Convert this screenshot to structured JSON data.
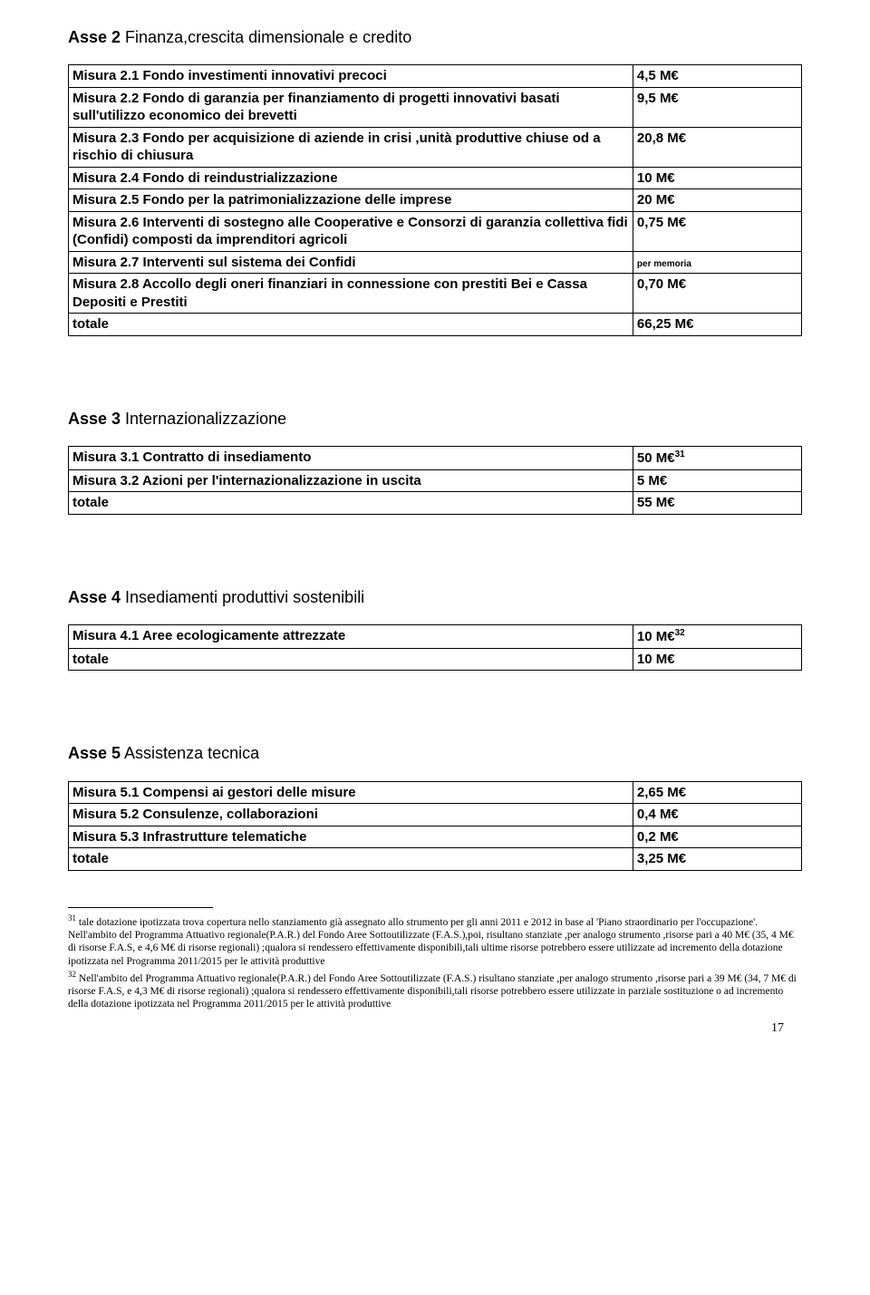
{
  "asse2": {
    "title_bold": "Asse 2",
    "title_rest": " Finanza,crescita dimensionale e credito",
    "rows": [
      {
        "label": "Misura 2.1 Fondo investimenti innovativi precoci",
        "value": "4,5 M€"
      },
      {
        "label": "Misura 2.2 Fondo di garanzia per finanziamento di progetti innovativi basati sull'utilizzo economico dei brevetti",
        "value": "9,5  M€"
      },
      {
        "label": "Misura 2.3 Fondo per  acquisizione di aziende in crisi ,unità produttive chiuse od a rischio di chiusura",
        "value": "20,8  M€"
      },
      {
        "label": "Misura 2.4 Fondo di reindustrializzazione",
        "value": "10    M€"
      },
      {
        "label": "Misura 2.5 Fondo per la patrimonializzazione delle imprese",
        "value": "20   M€"
      },
      {
        "label": "Misura 2.6  Interventi di sostegno alle Cooperative e Consorzi di garanzia collettiva fidi (Confidi) composti da imprenditori agricoli",
        "value": "0,75 M€"
      },
      {
        "label": "Misura 2.7 Interventi sul sistema dei Confidi",
        "value": "per memoria",
        "note": true
      },
      {
        "label": "Misura 2.8 Accollo degli oneri finanziari in connessione con prestiti Bei e Cassa Depositi e Prestiti",
        "value": "0,70 M€"
      },
      {
        "label": "totale",
        "value": "66,25 M€"
      }
    ]
  },
  "asse3": {
    "title_bold": "Asse 3",
    "title_rest": " Internazionalizzazione",
    "rows": [
      {
        "label": "Misura 3.1 Contratto di insediamento",
        "value": "50 M€",
        "sup": "31"
      },
      {
        "label": "Misura 3.2 Azioni per l'internazionalizzazione in uscita",
        "value": " 5 M€"
      },
      {
        "label": "totale",
        "value": "55 M€"
      }
    ]
  },
  "asse4": {
    "title_bold": "Asse 4",
    "title_rest": " Insediamenti produttivi sostenibili",
    "rows": [
      {
        "label": "Misura 4.1 Aree ecologicamente attrezzate",
        "value": "10 M€",
        "sup": "32"
      },
      {
        "label": "totale",
        "value": "10 M€"
      }
    ]
  },
  "asse5": {
    "title_bold": "Asse 5",
    "title_rest": " Assistenza tecnica",
    "rows": [
      {
        "label": "Misura 5.1 Compensi ai gestori delle misure",
        "value": "2,65 M€"
      },
      {
        "label": "Misura 5.2 Consulenze, collaborazioni",
        "value": "0,4   M€"
      },
      {
        "label": "Misura 5.3 Infrastrutture telematiche",
        "value": "0,2   M€"
      },
      {
        "label": "totale",
        "value": "3,25 M€"
      }
    ]
  },
  "footnotes": {
    "fn31_sup": "31",
    "fn31_text": " tale dotazione ipotizzata trova copertura nello stanziamento già  assegnato allo strumento per gli anni 2011 e 2012 in base al 'Piano straordinario per l'occupazione'. Nell'ambito del Programma Attuativo regionale(P.A.R.)  del Fondo Aree Sottoutilizzate (F.A.S.),poi, risultano stanziate ,per analogo strumento ,risorse pari a 40 M€ (35, 4 M€ di risorse F.A.S, e 4,6 M€ di risorse regionali) ;qualora si rendessero effettivamente disponibili,tali ultime  risorse potrebbero essere utilizzate ad incremento della dotazione ipotizzata nel Programma 2011/2015 per le attività produttive",
    "fn32_sup": "32",
    "fn32_text": " Nell'ambito del Programma Attuativo regionale(P.A.R.)  del Fondo Aree Sottoutilizzate (F.A.S.) risultano stanziate ,per analogo strumento ,risorse pari a 39 M€ (34, 7 M€ di risorse F.A.S, e 4,3 M€ di risorse regionali) ;qualora si rendessero effettivamente disponibili,tali risorse potrebbero  essere utilizzate in parziale sostituzione o ad incremento della dotazione ipotizzata nel Programma 2011/2015 per le attività produttive"
  },
  "page_number": "17"
}
